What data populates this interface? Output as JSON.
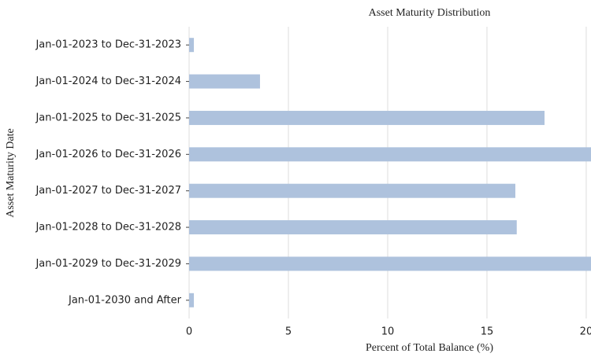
{
  "chart_data": {
    "type": "barh",
    "title": "Asset Maturity Distribution",
    "xlabel": "Percent of Total Balance (%)",
    "ylabel": "Asset Maturity Date",
    "categories": [
      "Jan-01-2023  to  Dec-31-2023",
      "Jan-01-2024  to  Dec-31-2024",
      "Jan-01-2025  to  Dec-31-2025",
      "Jan-01-2026  to  Dec-31-2026",
      "Jan-01-2027  to  Dec-31-2027",
      "Jan-01-2028  to  Dec-31-2028",
      "Jan-01-2029  to  Dec-31-2029",
      "Jan-01-2030 and After"
    ],
    "values": [
      0.24,
      3.57,
      17.9,
      21.5,
      16.43,
      16.5,
      21.0,
      0.24
    ],
    "color": "#aec2dd",
    "xlim": [
      0,
      20.24
    ],
    "xticks": [
      0,
      5,
      10,
      15,
      20
    ],
    "grid": true
  }
}
